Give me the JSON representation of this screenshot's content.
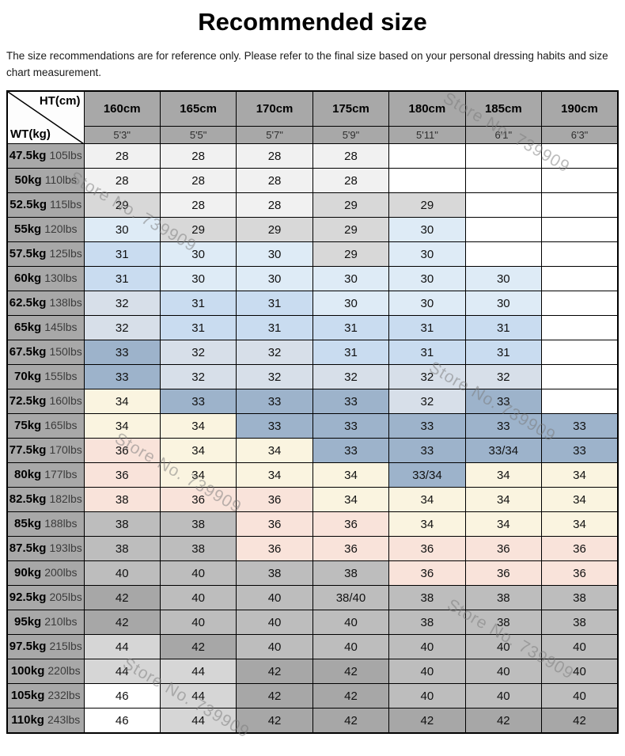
{
  "title": "Recommended size",
  "disclaimer": "The size recommendations are for reference only. Please refer to the final size based on your personal dressing habits and size chart measurement.",
  "watermark": "Store No. 739909",
  "palette": {
    "wh": "#ffffff",
    "g1": "#f1f1f1",
    "g2": "#d8d8d8",
    "g3": "#bdbdbd",
    "g4": "#a7a7a7",
    "g5": "#d6d6d6",
    "b0": "#deebf6",
    "b1": "#c9dcf0",
    "b2": "#d7dfe9",
    "b3": "#9db3cb",
    "cr": "#faf4e0",
    "pk": "#f9e3da",
    "header_bg": "#a8a8a8"
  },
  "table": {
    "corner": {
      "top": "HT(cm)",
      "bottom": "WT(kg)"
    },
    "columns": [
      {
        "cm": "160cm",
        "ft": "5'3\""
      },
      {
        "cm": "165cm",
        "ft": "5'5\""
      },
      {
        "cm": "170cm",
        "ft": "5'7\""
      },
      {
        "cm": "175cm",
        "ft": "5'9\""
      },
      {
        "cm": "180cm",
        "ft": "5'11\""
      },
      {
        "cm": "185cm",
        "ft": "6'1\""
      },
      {
        "cm": "190cm",
        "ft": "6'3\""
      }
    ],
    "rows": [
      {
        "kg": "47.5kg",
        "lbs": "105lbs",
        "cells": [
          {
            "v": "28",
            "c": "g1"
          },
          {
            "v": "28",
            "c": "g1"
          },
          {
            "v": "28",
            "c": "g1"
          },
          {
            "v": "28",
            "c": "g1"
          },
          {
            "v": "",
            "c": "wh"
          },
          {
            "v": "",
            "c": "wh"
          },
          {
            "v": "",
            "c": "wh"
          }
        ]
      },
      {
        "kg": "50kg",
        "lbs": "110lbs",
        "cells": [
          {
            "v": "28",
            "c": "g1"
          },
          {
            "v": "28",
            "c": "g1"
          },
          {
            "v": "28",
            "c": "g1"
          },
          {
            "v": "28",
            "c": "g1"
          },
          {
            "v": "",
            "c": "wh"
          },
          {
            "v": "",
            "c": "wh"
          },
          {
            "v": "",
            "c": "wh"
          }
        ]
      },
      {
        "kg": "52.5kg",
        "lbs": "115lbs",
        "cells": [
          {
            "v": "29",
            "c": "g2"
          },
          {
            "v": "28",
            "c": "g1"
          },
          {
            "v": "28",
            "c": "g1"
          },
          {
            "v": "29",
            "c": "g2"
          },
          {
            "v": "29",
            "c": "g2"
          },
          {
            "v": "",
            "c": "wh"
          },
          {
            "v": "",
            "c": "wh"
          }
        ]
      },
      {
        "kg": "55kg",
        "lbs": "120lbs",
        "cells": [
          {
            "v": "30",
            "c": "b0"
          },
          {
            "v": "29",
            "c": "g2"
          },
          {
            "v": "29",
            "c": "g2"
          },
          {
            "v": "29",
            "c": "g2"
          },
          {
            "v": "30",
            "c": "b0"
          },
          {
            "v": "",
            "c": "wh"
          },
          {
            "v": "",
            "c": "wh"
          }
        ]
      },
      {
        "kg": "57.5kg",
        "lbs": "125lbs",
        "cells": [
          {
            "v": "31",
            "c": "b1"
          },
          {
            "v": "30",
            "c": "b0"
          },
          {
            "v": "30",
            "c": "b0"
          },
          {
            "v": "29",
            "c": "g2"
          },
          {
            "v": "30",
            "c": "b0"
          },
          {
            "v": "",
            "c": "wh"
          },
          {
            "v": "",
            "c": "wh"
          }
        ]
      },
      {
        "kg": "60kg",
        "lbs": "130lbs",
        "cells": [
          {
            "v": "31",
            "c": "b1"
          },
          {
            "v": "30",
            "c": "b0"
          },
          {
            "v": "30",
            "c": "b0"
          },
          {
            "v": "30",
            "c": "b0"
          },
          {
            "v": "30",
            "c": "b0"
          },
          {
            "v": "30",
            "c": "b0"
          },
          {
            "v": "",
            "c": "wh"
          }
        ]
      },
      {
        "kg": "62.5kg",
        "lbs": "138lbs",
        "cells": [
          {
            "v": "32",
            "c": "b2"
          },
          {
            "v": "31",
            "c": "b1"
          },
          {
            "v": "31",
            "c": "b1"
          },
          {
            "v": "30",
            "c": "b0"
          },
          {
            "v": "30",
            "c": "b0"
          },
          {
            "v": "30",
            "c": "b0"
          },
          {
            "v": "",
            "c": "wh"
          }
        ]
      },
      {
        "kg": "65kg",
        "lbs": "145lbs",
        "cells": [
          {
            "v": "32",
            "c": "b2"
          },
          {
            "v": "31",
            "c": "b1"
          },
          {
            "v": "31",
            "c": "b1"
          },
          {
            "v": "31",
            "c": "b1"
          },
          {
            "v": "31",
            "c": "b1"
          },
          {
            "v": "31",
            "c": "b1"
          },
          {
            "v": "",
            "c": "wh"
          }
        ]
      },
      {
        "kg": "67.5kg",
        "lbs": "150lbs",
        "cells": [
          {
            "v": "33",
            "c": "b3"
          },
          {
            "v": "32",
            "c": "b2"
          },
          {
            "v": "32",
            "c": "b2"
          },
          {
            "v": "31",
            "c": "b1"
          },
          {
            "v": "31",
            "c": "b1"
          },
          {
            "v": "31",
            "c": "b1"
          },
          {
            "v": "",
            "c": "wh"
          }
        ]
      },
      {
        "kg": "70kg",
        "lbs": "155lbs",
        "cells": [
          {
            "v": "33",
            "c": "b3"
          },
          {
            "v": "32",
            "c": "b2"
          },
          {
            "v": "32",
            "c": "b2"
          },
          {
            "v": "32",
            "c": "b2"
          },
          {
            "v": "32",
            "c": "b2"
          },
          {
            "v": "32",
            "c": "b2"
          },
          {
            "v": "",
            "c": "wh"
          }
        ]
      },
      {
        "kg": "72.5kg",
        "lbs": "160lbs",
        "cells": [
          {
            "v": "34",
            "c": "cr"
          },
          {
            "v": "33",
            "c": "b3"
          },
          {
            "v": "33",
            "c": "b3"
          },
          {
            "v": "33",
            "c": "b3"
          },
          {
            "v": "32",
            "c": "b2"
          },
          {
            "v": "33",
            "c": "b3"
          },
          {
            "v": "",
            "c": "wh"
          }
        ]
      },
      {
        "kg": "75kg",
        "lbs": "165lbs",
        "cells": [
          {
            "v": "34",
            "c": "cr"
          },
          {
            "v": "34",
            "c": "cr"
          },
          {
            "v": "33",
            "c": "b3"
          },
          {
            "v": "33",
            "c": "b3"
          },
          {
            "v": "33",
            "c": "b3"
          },
          {
            "v": "33",
            "c": "b3"
          },
          {
            "v": "33",
            "c": "b3"
          }
        ]
      },
      {
        "kg": "77.5kg",
        "lbs": "170lbs",
        "cells": [
          {
            "v": "36",
            "c": "pk"
          },
          {
            "v": "34",
            "c": "cr"
          },
          {
            "v": "34",
            "c": "cr"
          },
          {
            "v": "33",
            "c": "b3"
          },
          {
            "v": "33",
            "c": "b3"
          },
          {
            "v": "33/34",
            "c": "b3"
          },
          {
            "v": "33",
            "c": "b3"
          }
        ]
      },
      {
        "kg": "80kg",
        "lbs": "177lbs",
        "cells": [
          {
            "v": "36",
            "c": "pk"
          },
          {
            "v": "34",
            "c": "cr"
          },
          {
            "v": "34",
            "c": "cr"
          },
          {
            "v": "34",
            "c": "cr"
          },
          {
            "v": "33/34",
            "c": "b3"
          },
          {
            "v": "34",
            "c": "cr"
          },
          {
            "v": "34",
            "c": "cr"
          }
        ]
      },
      {
        "kg": "82.5kg",
        "lbs": "182lbs",
        "cells": [
          {
            "v": "38",
            "c": "pk"
          },
          {
            "v": "36",
            "c": "pk"
          },
          {
            "v": "36",
            "c": "pk"
          },
          {
            "v": "34",
            "c": "cr"
          },
          {
            "v": "34",
            "c": "cr"
          },
          {
            "v": "34",
            "c": "cr"
          },
          {
            "v": "34",
            "c": "cr"
          }
        ]
      },
      {
        "kg": "85kg",
        "lbs": "188lbs",
        "cells": [
          {
            "v": "38",
            "c": "g3"
          },
          {
            "v": "38",
            "c": "g3"
          },
          {
            "v": "36",
            "c": "pk"
          },
          {
            "v": "36",
            "c": "pk"
          },
          {
            "v": "34",
            "c": "cr"
          },
          {
            "v": "34",
            "c": "cr"
          },
          {
            "v": "34",
            "c": "cr"
          }
        ]
      },
      {
        "kg": "87.5kg",
        "lbs": "193lbs",
        "cells": [
          {
            "v": "38",
            "c": "g3"
          },
          {
            "v": "38",
            "c": "g3"
          },
          {
            "v": "36",
            "c": "pk"
          },
          {
            "v": "36",
            "c": "pk"
          },
          {
            "v": "36",
            "c": "pk"
          },
          {
            "v": "36",
            "c": "pk"
          },
          {
            "v": "36",
            "c": "pk"
          }
        ]
      },
      {
        "kg": "90kg",
        "lbs": "200lbs",
        "cells": [
          {
            "v": "40",
            "c": "g3"
          },
          {
            "v": "40",
            "c": "g3"
          },
          {
            "v": "38",
            "c": "g3"
          },
          {
            "v": "38",
            "c": "g3"
          },
          {
            "v": "36",
            "c": "pk"
          },
          {
            "v": "36",
            "c": "pk"
          },
          {
            "v": "36",
            "c": "pk"
          }
        ]
      },
      {
        "kg": "92.5kg",
        "lbs": "205lbs",
        "cells": [
          {
            "v": "42",
            "c": "g4"
          },
          {
            "v": "40",
            "c": "g3"
          },
          {
            "v": "40",
            "c": "g3"
          },
          {
            "v": "38/40",
            "c": "g3"
          },
          {
            "v": "38",
            "c": "g3"
          },
          {
            "v": "38",
            "c": "g3"
          },
          {
            "v": "38",
            "c": "g3"
          }
        ]
      },
      {
        "kg": "95kg",
        "lbs": "210lbs",
        "cells": [
          {
            "v": "42",
            "c": "g4"
          },
          {
            "v": "40",
            "c": "g3"
          },
          {
            "v": "40",
            "c": "g3"
          },
          {
            "v": "40",
            "c": "g3"
          },
          {
            "v": "38",
            "c": "g3"
          },
          {
            "v": "38",
            "c": "g3"
          },
          {
            "v": "38",
            "c": "g3"
          }
        ]
      },
      {
        "kg": "97.5kg",
        "lbs": "215lbs",
        "cells": [
          {
            "v": "44",
            "c": "g5"
          },
          {
            "v": "42",
            "c": "g4"
          },
          {
            "v": "40",
            "c": "g3"
          },
          {
            "v": "40",
            "c": "g3"
          },
          {
            "v": "40",
            "c": "g3"
          },
          {
            "v": "40",
            "c": "g3"
          },
          {
            "v": "40",
            "c": "g3"
          }
        ]
      },
      {
        "kg": "100kg",
        "lbs": "220lbs",
        "cells": [
          {
            "v": "44",
            "c": "g5"
          },
          {
            "v": "44",
            "c": "g5"
          },
          {
            "v": "42",
            "c": "g4"
          },
          {
            "v": "42",
            "c": "g4"
          },
          {
            "v": "40",
            "c": "g3"
          },
          {
            "v": "40",
            "c": "g3"
          },
          {
            "v": "40",
            "c": "g3"
          }
        ]
      },
      {
        "kg": "105kg",
        "lbs": "232lbs",
        "cells": [
          {
            "v": "46",
            "c": "wh"
          },
          {
            "v": "44",
            "c": "g5"
          },
          {
            "v": "42",
            "c": "g4"
          },
          {
            "v": "42",
            "c": "g4"
          },
          {
            "v": "40",
            "c": "g3"
          },
          {
            "v": "40",
            "c": "g3"
          },
          {
            "v": "40",
            "c": "g3"
          }
        ]
      },
      {
        "kg": "110kg",
        "lbs": "243lbs",
        "cells": [
          {
            "v": "46",
            "c": "wh"
          },
          {
            "v": "44",
            "c": "g5"
          },
          {
            "v": "42",
            "c": "g4"
          },
          {
            "v": "42",
            "c": "g4"
          },
          {
            "v": "42",
            "c": "g4"
          },
          {
            "v": "42",
            "c": "g4"
          },
          {
            "v": "42",
            "c": "g4"
          }
        ]
      }
    ]
  }
}
